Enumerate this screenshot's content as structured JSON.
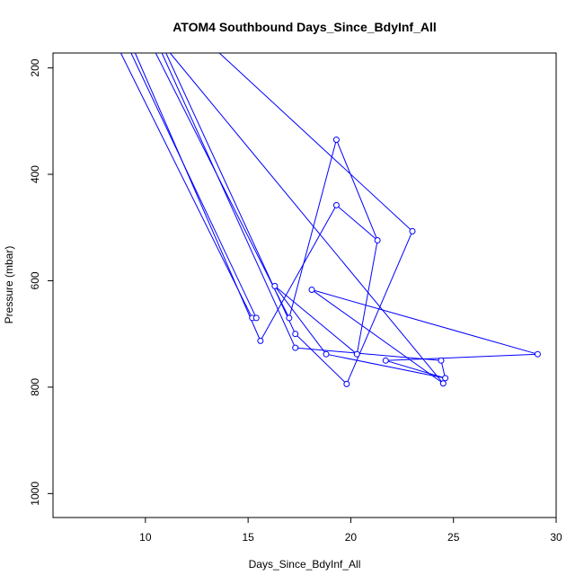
{
  "chart_data": {
    "type": "line",
    "title": "ATOM4 Southbound Days_Since_BdyInf_All",
    "xlabel": "Days_Since_BdyInf_All",
    "ylabel": "Pressure (mbar)",
    "xlim": [
      5.5,
      30.0
    ],
    "ylim": [
      1045,
      172
    ],
    "y_inverted": true,
    "xticks": [
      10,
      15,
      20,
      25,
      30
    ],
    "yticks": [
      200,
      400,
      600,
      800,
      1000
    ],
    "series_color": "#0000ff",
    "marker": "open-circle",
    "points": [
      {
        "x": 15.2,
        "y": 670
      },
      {
        "x": 15.4,
        "y": 670
      },
      {
        "x": 15.6,
        "y": 713
      },
      {
        "x": 16.3,
        "y": 610
      },
      {
        "x": 17.0,
        "y": 670
      },
      {
        "x": 17.3,
        "y": 700
      },
      {
        "x": 17.3,
        "y": 726
      },
      {
        "x": 18.1,
        "y": 617
      },
      {
        "x": 18.8,
        "y": 738
      },
      {
        "x": 19.3,
        "y": 335
      },
      {
        "x": 19.3,
        "y": 458
      },
      {
        "x": 19.8,
        "y": 794
      },
      {
        "x": 20.3,
        "y": 738
      },
      {
        "x": 21.3,
        "y": 524
      },
      {
        "x": 21.7,
        "y": 750
      },
      {
        "x": 23.0,
        "y": 507
      },
      {
        "x": 24.4,
        "y": 750
      },
      {
        "x": 24.5,
        "y": 793
      },
      {
        "x": 24.6,
        "y": 783
      },
      {
        "x": 29.1,
        "y": 738
      }
    ],
    "segments": [
      [
        [
          8.8,
          170
        ],
        [
          15.2,
          670
        ]
      ],
      [
        [
          9.3,
          170
        ],
        [
          15.4,
          670
        ]
      ],
      [
        [
          10.8,
          170
        ],
        [
          17.3,
          726
        ]
      ],
      [
        [
          11.0,
          170
        ],
        [
          17.3,
          700
        ]
      ],
      [
        [
          11.2,
          170
        ],
        [
          24.5,
          793
        ]
      ],
      [
        [
          13.6,
          170
        ],
        [
          23.0,
          507
        ]
      ],
      [
        [
          9.5,
          170
        ],
        [
          15.6,
          713
        ]
      ],
      [
        [
          10.5,
          170
        ],
        [
          17.0,
          670
        ]
      ],
      [
        [
          15.6,
          713
        ],
        [
          19.3,
          458
        ]
      ],
      [
        [
          19.3,
          458
        ],
        [
          21.3,
          524
        ]
      ],
      [
        [
          17.0,
          670
        ],
        [
          19.3,
          335
        ]
      ],
      [
        [
          19.3,
          335
        ],
        [
          21.3,
          524
        ]
      ],
      [
        [
          21.3,
          524
        ],
        [
          20.3,
          738
        ]
      ],
      [
        [
          17.3,
          700
        ],
        [
          19.8,
          794
        ]
      ],
      [
        [
          19.8,
          794
        ],
        [
          23.0,
          507
        ]
      ],
      [
        [
          16.3,
          610
        ],
        [
          18.8,
          738
        ]
      ],
      [
        [
          16.3,
          610
        ],
        [
          20.3,
          738
        ]
      ],
      [
        [
          18.8,
          738
        ],
        [
          24.6,
          783
        ]
      ],
      [
        [
          18.1,
          617
        ],
        [
          24.5,
          793
        ]
      ],
      [
        [
          18.1,
          617
        ],
        [
          29.1,
          738
        ]
      ],
      [
        [
          29.1,
          738
        ],
        [
          21.7,
          750
        ]
      ],
      [
        [
          17.3,
          726
        ],
        [
          24.4,
          750
        ]
      ],
      [
        [
          24.4,
          750
        ],
        [
          24.6,
          783
        ]
      ],
      [
        [
          24.6,
          783
        ],
        [
          21.7,
          750
        ]
      ]
    ]
  }
}
